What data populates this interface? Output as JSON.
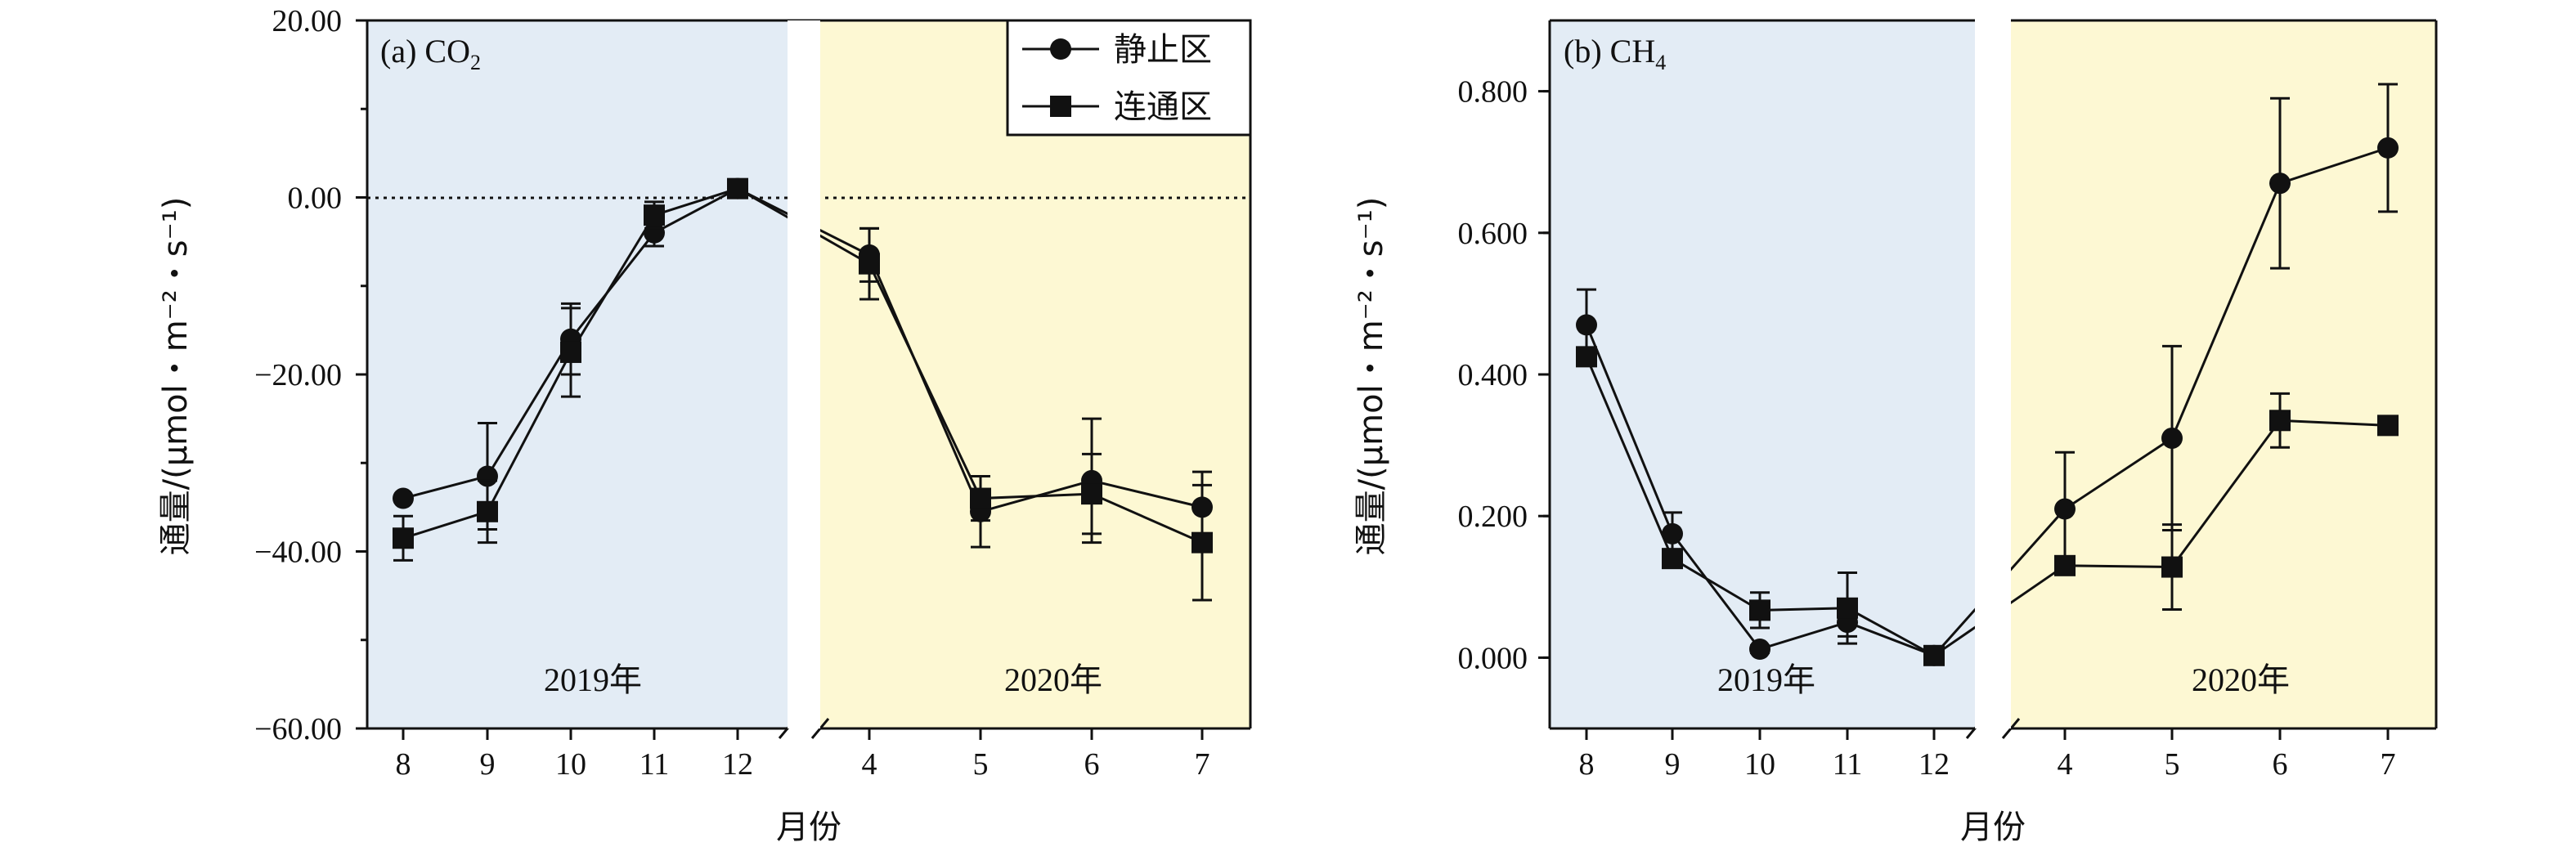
{
  "chart_data": [
    {
      "type": "line",
      "panel_label": "(a) CO",
      "panel_label_sub": "2",
      "ylabel": "通量/(μmol・m⁻²・s⁻¹)",
      "xlabel": "月份",
      "ylim": [
        -60,
        20
      ],
      "yticks": [
        20,
        0,
        -20,
        -40,
        -60
      ],
      "ytick_labels": [
        "20.00",
        "0.00",
        "−20.00",
        "−40.00",
        "−60.00"
      ],
      "zero_line": true,
      "periods": [
        {
          "label": "2019年",
          "months": [
            "8",
            "9",
            "10",
            "11",
            "12"
          ],
          "shade": "#e3ecf5"
        },
        {
          "label": "2020年",
          "months": [
            "4",
            "5",
            "6",
            "7"
          ],
          "shade": "#fdf8d3"
        }
      ],
      "legend": {
        "position": "top-right"
      },
      "series": [
        {
          "name": "静止区",
          "marker": "circle",
          "segments": [
            {
              "values": [
                -34,
                -31.5,
                -16,
                -4,
                1
              ],
              "errors": [
                [
                  null,
                  null
                ],
                [
                  6,
                  6
                ],
                [
                  4,
                  4
                ],
                [
                  1.5,
                  1.5
                ],
                [
                  0.5,
                  0.5
                ]
              ]
            },
            {
              "values": [
                -6.5,
                -35.5,
                -32,
                -35
              ],
              "errors": [
                [
                  3,
                  3
                ],
                [
                  4,
                  4
                ],
                [
                  7,
                  7
                ],
                [
                  4,
                  4
                ]
              ]
            }
          ]
        },
        {
          "name": "连通区",
          "marker": "square",
          "segments": [
            {
              "values": [
                -38.5,
                -35.5,
                -17.5,
                -2,
                1
              ],
              "errors": [
                [
                  2.5,
                  2.5
                ],
                [
                  3.5,
                  3.5
                ],
                [
                  5,
                  5
                ],
                [
                  1.5,
                  1.5
                ],
                [
                  0.5,
                  0.5
                ]
              ]
            },
            {
              "values": [
                -7.5,
                -34,
                -33.5,
                -39
              ],
              "errors": [
                [
                  4,
                  4
                ],
                [
                  2.5,
                  2.5
                ],
                [
                  4.5,
                  4.5
                ],
                [
                  6.5,
                  6.5
                ]
              ]
            }
          ]
        }
      ]
    },
    {
      "type": "line",
      "panel_label": "(b) CH",
      "panel_label_sub": "4",
      "ylabel": "通量/(μmol・m⁻²・s⁻¹)",
      "xlabel": "月份",
      "ylim": [
        -0.1,
        0.9
      ],
      "yticks": [
        0.8,
        0.6,
        0.4,
        0.2,
        0.0
      ],
      "ytick_labels": [
        "0.800",
        "0.600",
        "0.400",
        "0.200",
        "0.000"
      ],
      "zero_line": false,
      "periods": [
        {
          "label": "2019年",
          "months": [
            "8",
            "9",
            "10",
            "11",
            "12"
          ],
          "shade": "#e3ecf5"
        },
        {
          "label": "2020年",
          "months": [
            "4",
            "5",
            "6",
            "7"
          ],
          "shade": "#fdf8d3"
        }
      ],
      "series": [
        {
          "name": "静止区",
          "marker": "circle",
          "segments": [
            {
              "values": [
                0.47,
                0.175,
                0.012,
                0.05,
                0.003
              ],
              "errors": [
                [
                  0.05,
                  0.05
                ],
                [
                  0.03,
                  0.03
                ],
                [
                  0.005,
                  0.005
                ],
                [
                  0.02,
                  0.02
                ],
                [
                  0.003,
                  0.003
                ]
              ]
            },
            {
              "values": [
                0.21,
                0.31,
                0.67,
                0.72
              ],
              "errors": [
                [
                  0.08,
                  0.08
                ],
                [
                  0.13,
                  0.13
                ],
                [
                  0.12,
                  0.12
                ],
                [
                  0.09,
                  0.09
                ]
              ]
            }
          ]
        },
        {
          "name": "连通区",
          "marker": "square",
          "segments": [
            {
              "values": [
                0.425,
                0.14,
                0.067,
                0.07,
                0.003
              ],
              "errors": [
                [
                  0.01,
                  0.01
                ],
                [
                  0.01,
                  0.01
                ],
                [
                  0.025,
                  0.025
                ],
                [
                  0.05,
                  0.05
                ],
                [
                  0.003,
                  0.003
                ]
              ]
            },
            {
              "values": [
                0.13,
                0.128,
                0.335,
                0.328
              ],
              "errors": [
                [
                  null,
                  null
                ],
                [
                  0.06,
                  0.06
                ],
                [
                  0.038,
                  0.038
                ],
                [
                  null,
                  null
                ]
              ]
            }
          ]
        }
      ]
    }
  ]
}
